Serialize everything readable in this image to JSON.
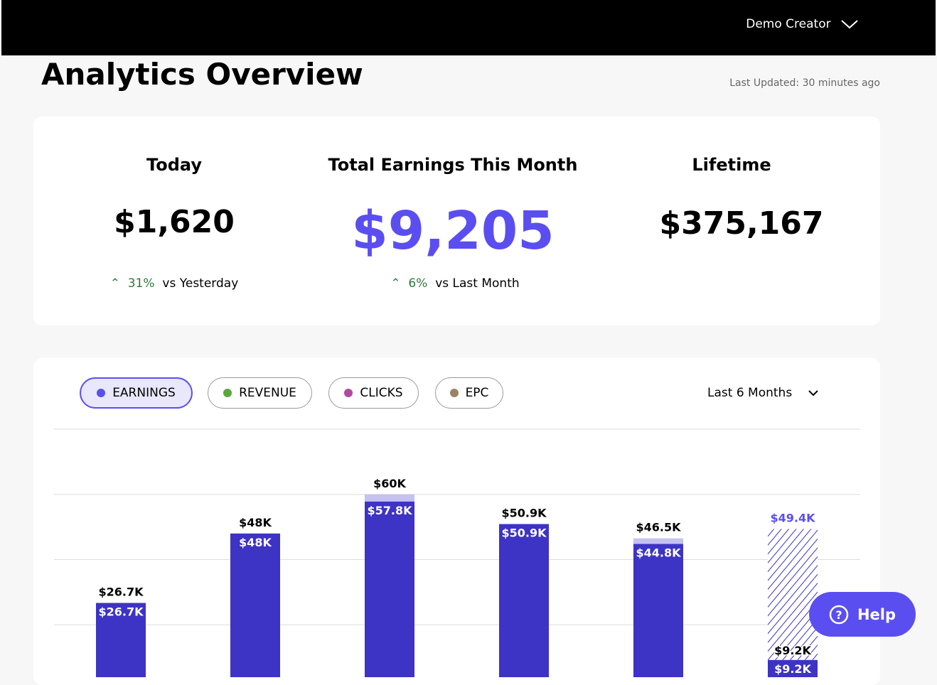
{
  "header": {
    "user": "Demo Creator"
  },
  "title": "Analytics Overview",
  "last_updated": "Last Updated: 30 minutes ago",
  "stats": [
    {
      "label": "Today",
      "value": "$1,620",
      "change": "31%",
      "comparison": "vs Yesterday"
    },
    {
      "label": "Total Earnings This Month",
      "value": "$9,205",
      "change": "6%",
      "comparison": "vs Last Month"
    },
    {
      "label": "Lifetime",
      "value": "$375,167"
    }
  ],
  "filters": [
    {
      "label": "EARNINGS",
      "color": "#5b4ef0"
    },
    {
      "label": "REVENUE",
      "color": "#5aa83c"
    },
    {
      "label": "CLICKS",
      "color": "#b04aa0"
    },
    {
      "label": "EPC",
      "color": "#9a8268"
    }
  ],
  "range": "Last 6 Months",
  "help": "Help",
  "chart_data": {
    "type": "bar",
    "ylim": [
      0,
      80
    ],
    "yticks": [
      20,
      40,
      60,
      80
    ],
    "grid": true,
    "series": [
      {
        "color": "#3d33c4",
        "values": [
          26.7,
          48,
          57.8,
          50.9,
          44.8,
          9.2
        ],
        "value_labels": [
          "$26.7K",
          "$48K",
          "$57.8K",
          "$50.9K",
          "$44.8K",
          "$9.2K"
        ]
      }
    ],
    "totals": [
      26.7,
      48,
      60,
      50.9,
      46.5,
      49.4
    ],
    "total_labels": [
      "$26.7K",
      "$48K",
      "$60K",
      "$50.9K",
      "$46.5K",
      "$49.4K"
    ],
    "total_color": "#c5c1f2",
    "projected": [
      false,
      false,
      false,
      false,
      false,
      true
    ]
  }
}
